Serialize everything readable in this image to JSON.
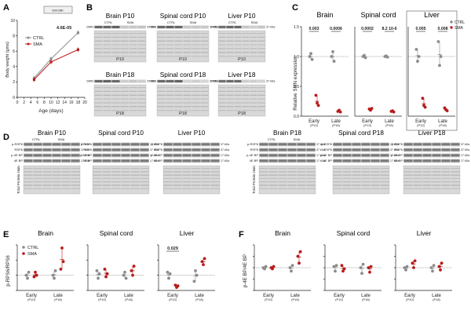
{
  "colors": {
    "ctrl": "#8c8c8c",
    "sma": "#b71c1c",
    "blotBg": "#e6e6e6",
    "blotBand": "#4a4a4a",
    "stainBg": "#d8d8d8"
  },
  "panels": {
    "A": {
      "letter": "A",
      "genotype_box": "Smn2B/-",
      "xlabel": "Age (days)",
      "ylabel": "Body weight (gms)",
      "pvalue": "4.6E-05",
      "legend": [
        "CTRL",
        "SMA"
      ],
      "xticks": [
        "0",
        "2",
        "4",
        "6",
        "8",
        "10",
        "12",
        "14",
        "16",
        "18",
        "20"
      ],
      "yticks": [
        "0",
        "2",
        "4",
        "6",
        "8",
        "10"
      ]
    },
    "B": {
      "letter": "B",
      "blots": [
        {
          "title": "Brain P10",
          "timepoint": "P10"
        },
        {
          "title": "Spinal cord P10",
          "timepoint": "P10"
        },
        {
          "title": "Liver P10",
          "timepoint": "P10"
        },
        {
          "title": "Brain P18",
          "timepoint": "P18"
        },
        {
          "title": "Spinal cord P18",
          "timepoint": "P18"
        },
        {
          "title": "Liver P18",
          "timepoint": "P18"
        }
      ],
      "smn": "SMN",
      "kda": "37 kDa",
      "ctrl": "CTRL",
      "sma": "SMA"
    },
    "C": {
      "letter": "C",
      "ylabel": "Relative SMN expression",
      "legend": [
        "CTRL",
        "SMA"
      ],
      "yticks": [
        "0.0",
        "0.5",
        "1.0",
        "1.5"
      ],
      "subplots": [
        {
          "title": "Brain",
          "pvalues": [
            "0.003",
            "0.0006"
          ],
          "xt": [
            "Early",
            "Late"
          ],
          "xs": [
            "(P10)",
            "(P16)"
          ]
        },
        {
          "title": "Spinal cord",
          "pvalues": [
            "0.0002",
            "8.2 10-6"
          ],
          "xt": [
            "Early",
            "Late"
          ],
          "xs": [
            "(P13)",
            "(P16)"
          ]
        },
        {
          "title": "Liver",
          "pvalues": [
            "0.005",
            "0.008"
          ],
          "xt": [
            "Early",
            "Late"
          ],
          "xs": [
            "(P10)",
            "(P18)"
          ]
        }
      ]
    },
    "D": {
      "letter": "D",
      "blots": [
        {
          "title": "Brain P10"
        },
        {
          "title": "Spinal cord P10"
        },
        {
          "title": "Liver P10"
        },
        {
          "title": "Brain P18"
        },
        {
          "title": "Spinal cord P18"
        },
        {
          "title": "Liver P18"
        }
      ],
      "rows": [
        "p-RSP6",
        "RSP6",
        "p-4E BP",
        "4E BP"
      ],
      "kda": [
        "37 kDa",
        "37 kDa",
        "17 kDa",
        "17 kDa"
      ],
      "stain": "Total Protein stain",
      "ctrl": "CTRL",
      "sma": "SMA"
    },
    "E": {
      "letter": "E",
      "ylabel": "p-RPS6/RPS6",
      "legend": [
        "CTRL",
        "SMA"
      ],
      "subplots": [
        {
          "title": "Brain",
          "pvalue": ""
        },
        {
          "title": "Spinal cord",
          "pvalue": ""
        },
        {
          "title": "Liver",
          "pvalue": "0.029"
        }
      ],
      "xt": [
        "Early",
        "Late"
      ],
      "xs": [
        "(P10)",
        "(P18)"
      ]
    },
    "F": {
      "letter": "F",
      "ylabel": "p-4E BP/4E BP",
      "subplots": [
        {
          "title": "Brain"
        },
        {
          "title": "Spinal cord"
        },
        {
          "title": "Liver"
        }
      ],
      "xt": [
        "Early",
        "Late"
      ],
      "xs": [
        "(P10)",
        "(P18)"
      ]
    }
  },
  "chart_data": [
    {
      "id": "A",
      "type": "line",
      "title": "Body weight",
      "xlabel": "Age (days)",
      "ylabel": "Body weight (gms)",
      "xlim": [
        0,
        20
      ],
      "ylim": [
        0,
        10
      ],
      "x": [
        5,
        10,
        18
      ],
      "series": [
        {
          "name": "CTRL",
          "values": [
            2.5,
            5.0,
            8.4
          ]
        },
        {
          "name": "SMA",
          "values": [
            2.3,
            4.6,
            6.2
          ]
        }
      ]
    },
    {
      "id": "C-brain",
      "type": "scatter",
      "title": "Brain",
      "ylim": [
        0,
        1.5
      ],
      "categories": [
        "Early",
        "Late"
      ],
      "series": [
        {
          "name": "CTRL",
          "values": [
            [
              1.0,
              1.05,
              0.95
            ],
            [
              1.0,
              1.08,
              0.92
            ]
          ]
        },
        {
          "name": "SMA",
          "values": [
            [
              0.35,
              0.22,
              0.18
            ],
            [
              0.08,
              0.1,
              0.07
            ]
          ]
        }
      ]
    },
    {
      "id": "C-spinal",
      "type": "scatter",
      "title": "Spinal cord",
      "ylim": [
        0,
        1.5
      ],
      "categories": [
        "Early",
        "Late"
      ],
      "series": [
        {
          "name": "CTRL",
          "values": [
            [
              1.0,
              1.02,
              0.98
            ],
            [
              1.0,
              1.01,
              0.99
            ]
          ]
        },
        {
          "name": "SMA",
          "values": [
            [
              0.12,
              0.1,
              0.13
            ],
            [
              0.08,
              0.09,
              0.07
            ]
          ]
        }
      ]
    },
    {
      "id": "C-liver",
      "type": "scatter",
      "title": "Liver",
      "ylim": [
        0,
        1.5
      ],
      "categories": [
        "Early",
        "Late"
      ],
      "series": [
        {
          "name": "CTRL",
          "values": [
            [
              1.12,
              0.92,
              1.0
            ],
            [
              1.25,
              0.85,
              1.0
            ]
          ]
        },
        {
          "name": "SMA",
          "values": [
            [
              0.3,
              0.18,
              0.15
            ],
            [
              0.14,
              0.11,
              0.09
            ]
          ]
        }
      ]
    },
    {
      "id": "E-brain",
      "type": "scatter",
      "title": "Brain",
      "ylim": [
        0,
        3
      ],
      "categories": [
        "Early",
        "Late"
      ],
      "series": [
        {
          "name": "CTRL",
          "values": [
            [
              1.0,
              0.8,
              1.2
            ],
            [
              1.0,
              0.8,
              1.3
            ]
          ]
        },
        {
          "name": "SMA",
          "values": [
            [
              0.9,
              1.2,
              1.0
            ],
            [
              1.4,
              2.8,
              1.9
            ]
          ]
        }
      ]
    },
    {
      "id": "E-spinal",
      "type": "scatter",
      "title": "Spinal cord",
      "ylim": [
        0,
        3
      ],
      "categories": [
        "Early",
        "Late"
      ],
      "series": [
        {
          "name": "CTRL",
          "values": [
            [
              1.3,
              0.8,
              1.1
            ],
            [
              1.0,
              1.2,
              0.8
            ]
          ]
        },
        {
          "name": "SMA",
          "values": [
            [
              1.4,
              0.9,
              1.1
            ],
            [
              1.3,
              1.0,
              1.6
            ]
          ]
        }
      ]
    },
    {
      "id": "E-liver",
      "type": "scatter",
      "title": "Liver",
      "ylim": [
        0,
        3
      ],
      "categories": [
        "Early",
        "Late"
      ],
      "series": [
        {
          "name": "CTRL",
          "values": [
            [
              1.2,
              0.8,
              1.1
            ],
            [
              0.6,
              1.3,
              1.0
            ]
          ]
        },
        {
          "name": "SMA",
          "values": [
            [
              0.35,
              0.2,
              0.3
            ],
            [
              1.9,
              1.7,
              2.1
            ]
          ]
        }
      ]
    },
    {
      "id": "F-brain",
      "type": "scatter",
      "title": "Brain",
      "ylim": [
        0,
        2
      ],
      "categories": [
        "Early",
        "Late"
      ],
      "series": [
        {
          "name": "CTRL",
          "values": [
            [
              1.0,
              0.95,
              1.05
            ],
            [
              1.0,
              0.85,
              1.1
            ]
          ]
        },
        {
          "name": "SMA",
          "values": [
            [
              1.0,
              0.95,
              1.05
            ],
            [
              1.5,
              1.2,
              1.7
            ]
          ]
        }
      ]
    },
    {
      "id": "F-spinal",
      "type": "scatter",
      "title": "Spinal cord",
      "ylim": [
        0,
        2
      ],
      "categories": [
        "Early",
        "Late"
      ],
      "series": [
        {
          "name": "CTRL",
          "values": [
            [
              1.05,
              0.85,
              1.1
            ],
            [
              1.0,
              0.75,
              1.15
            ]
          ]
        },
        {
          "name": "SMA",
          "values": [
            [
              1.1,
              0.85,
              0.95
            ],
            [
              1.0,
              0.8,
              1.05
            ]
          ]
        }
      ]
    },
    {
      "id": "F-liver",
      "type": "scatter",
      "title": "Liver",
      "ylim": [
        0,
        2
      ],
      "categories": [
        "Early",
        "Late"
      ],
      "series": [
        {
          "name": "CTRL",
          "values": [
            [
              1.0,
              0.9,
              1.05
            ],
            [
              1.0,
              0.85,
              1.1
            ]
          ]
        },
        {
          "name": "SMA",
          "values": [
            [
              1.2,
              1.0,
              1.3
            ],
            [
              1.05,
              0.9,
              1.2
            ]
          ]
        }
      ]
    }
  ]
}
